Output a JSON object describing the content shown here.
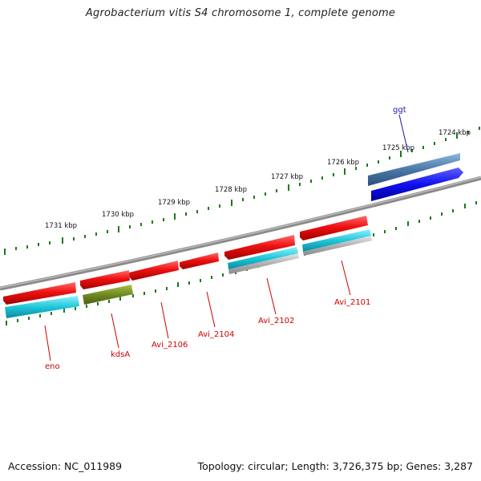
{
  "title": "Agrobacterium vitis S4 chromosome 1, complete genome",
  "footer": {
    "accession": "Accession: NC_011989",
    "summary": "Topology: circular; Length: 3,726,375 bp; Genes: 3,287"
  },
  "scale_labels": [
    "1724 kbp",
    "1725 kbp",
    "1726 kbp",
    "1727 kbp",
    "1728 kbp",
    "1729 kbp",
    "1730 kbp",
    "1731 kbp"
  ],
  "gene_labels": [
    {
      "text": "ggt",
      "color": "#1a1aa8"
    },
    {
      "text": "Avi_2101",
      "color": "#cc0000"
    },
    {
      "text": "Avi_2102",
      "color": "#cc0000"
    },
    {
      "text": "Avi_2104",
      "color": "#cc0000"
    },
    {
      "text": "Avi_2106",
      "color": "#cc0000"
    },
    {
      "text": "kdsA",
      "color": "#cc0000"
    },
    {
      "text": "eno",
      "color": "#cc0000"
    }
  ],
  "colors": {
    "cds_red": "#ee1111",
    "gene_cyan": "#1fc6d8",
    "gene_olive": "#6f8a22",
    "gene_steel": "#4a78a8",
    "cds_blue": "#1010ee",
    "gene_grey": "#b0b0b0",
    "backbone": "#7a7a7a",
    "tick": "#1a7a1a"
  }
}
